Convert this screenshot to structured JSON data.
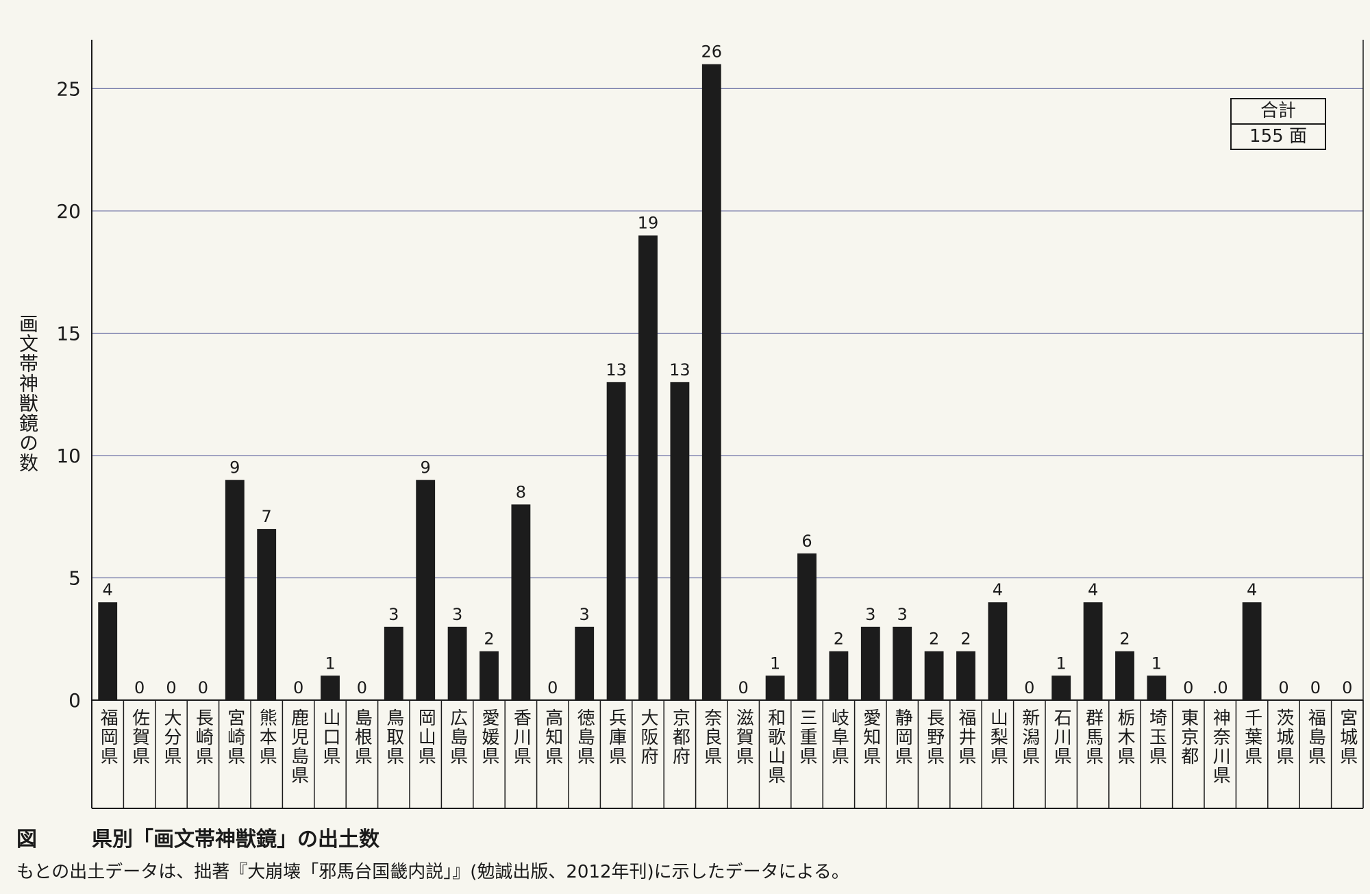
{
  "chart_data": {
    "type": "bar",
    "title": "県別「画文帯神獣鏡」の出土数",
    "figure_label": "図",
    "ylabel": "画文帯神獣鏡の数",
    "xlabel": "",
    "ylim": [
      0,
      27
    ],
    "yticks": [
      0,
      5,
      10,
      15,
      20,
      25
    ],
    "grid": true,
    "categories": [
      "福岡県",
      "佐賀県",
      "大分県",
      "長崎県",
      "宮崎県",
      "熊本県",
      "鹿児島県",
      "山口県",
      "島根県",
      "鳥取県",
      "岡山県",
      "広島県",
      "愛媛県",
      "香川県",
      "高知県",
      "徳島県",
      "兵庫県",
      "大阪府",
      "京都府",
      "奈良県",
      "滋賀県",
      "和歌山県",
      "三重県",
      "岐阜県",
      "愛知県",
      "静岡県",
      "長野県",
      "福井県",
      "山梨県",
      "新潟県",
      "石川県",
      "群馬県",
      "栃木県",
      "埼玉県",
      "東京都",
      "神奈川県",
      "千葉県",
      "茨城県",
      "福島県",
      "宮城県"
    ],
    "values": [
      4,
      0,
      0,
      0,
      9,
      7,
      0,
      1,
      0,
      3,
      9,
      3,
      2,
      8,
      0,
      3,
      13,
      19,
      13,
      26,
      0,
      1,
      6,
      2,
      3,
      3,
      2,
      2,
      4,
      0,
      1,
      4,
      2,
      1,
      0,
      0,
      4,
      0,
      0,
      0
    ],
    "value_labels": [
      "4",
      "0",
      "0",
      "0",
      "9",
      "7",
      "0",
      "1",
      "0",
      "3",
      "9",
      "3",
      "2",
      "8",
      "0",
      "3",
      "13",
      "19",
      "13",
      "26",
      "0",
      "1",
      "6",
      "2",
      "3",
      "3",
      "2",
      "2",
      "4",
      "0",
      "1",
      "4",
      "2",
      "1",
      "0",
      ".0",
      "4",
      "0",
      "0",
      "0"
    ]
  },
  "total": {
    "label": "合計",
    "value": "155 面"
  },
  "note": "もとの出土データは、拙著『大崩壊「邪馬台国畿内説」』(勉誠出版、2012年刊)に示したデータによる。",
  "colors": {
    "bar": "#1c1c1c",
    "grid": "#6f74a6",
    "axis": "#1a1a1a",
    "background": "#f7f6ef"
  }
}
